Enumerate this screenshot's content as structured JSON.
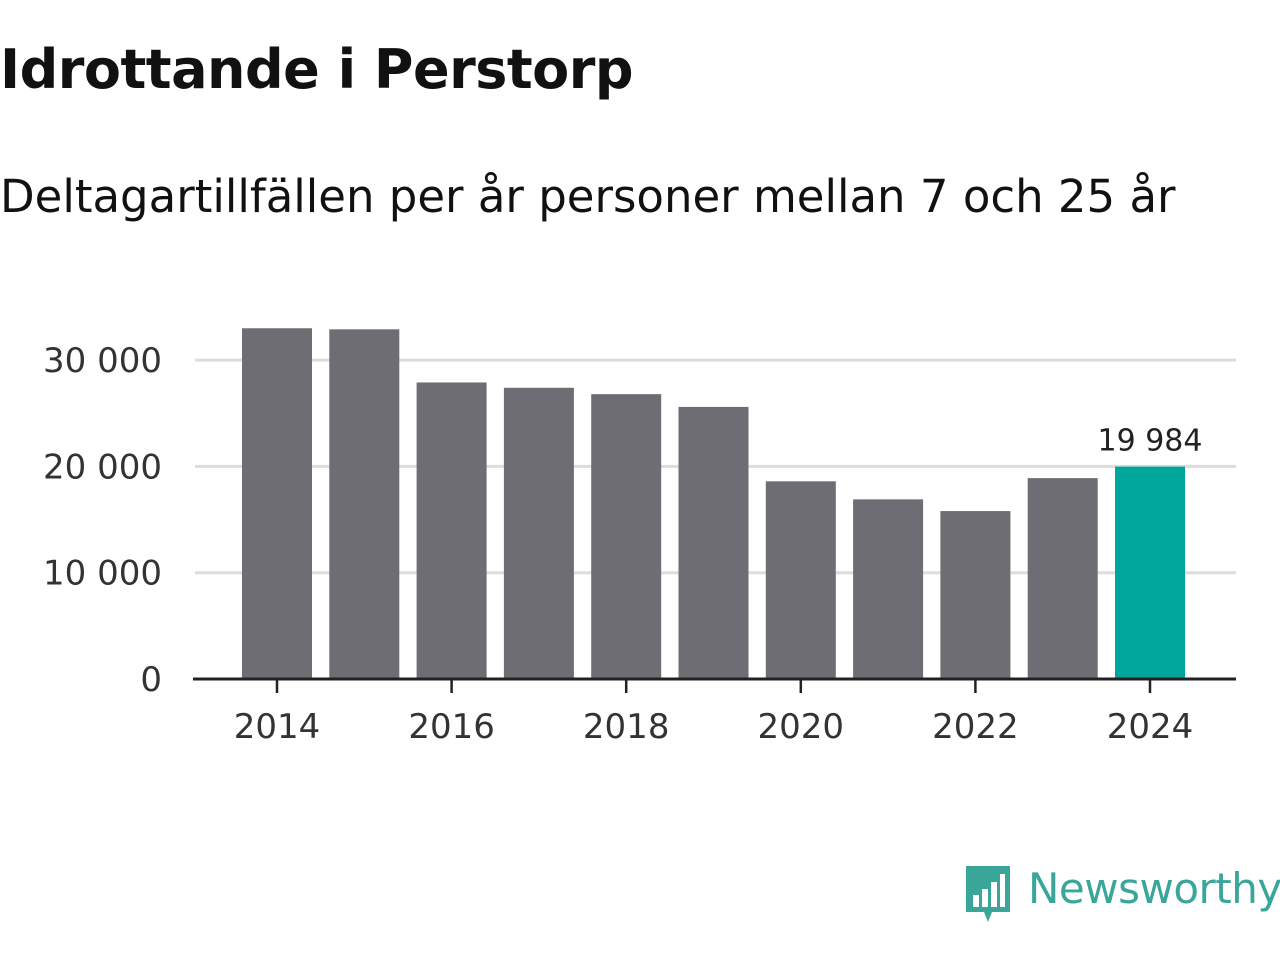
{
  "title": "Idrottande i Perstorp",
  "subtitle": "Deltagartillfällen per år personer mellan 7 och 25 år",
  "brand": {
    "name": "Newsworthy",
    "color": "#3aa69a",
    "icon": "bar-chart-bubble-icon"
  },
  "colors": {
    "bar": "#6e6d73",
    "highlight": "#00a59b",
    "grid": "#dddddd",
    "axis": "#222222",
    "text": "#333333"
  },
  "chart_data": {
    "type": "bar",
    "categories": [
      "2014",
      "2015",
      "2016",
      "2017",
      "2018",
      "2019",
      "2020",
      "2021",
      "2022",
      "2023",
      "2024"
    ],
    "values": [
      33000,
      32900,
      27900,
      27400,
      26800,
      25600,
      18600,
      16900,
      15800,
      18900,
      19984
    ],
    "highlight_index": 10,
    "data_label": "19 984",
    "ylim": [
      0,
      35000
    ],
    "yticks": [
      0,
      10000,
      20000,
      30000
    ],
    "ytick_labels": [
      "0",
      "10 000",
      "20 000",
      "30 000"
    ],
    "xtick_labels": [
      "2014",
      "2016",
      "2018",
      "2020",
      "2022",
      "2024"
    ],
    "xlabel": "",
    "ylabel": "",
    "grid": true
  }
}
